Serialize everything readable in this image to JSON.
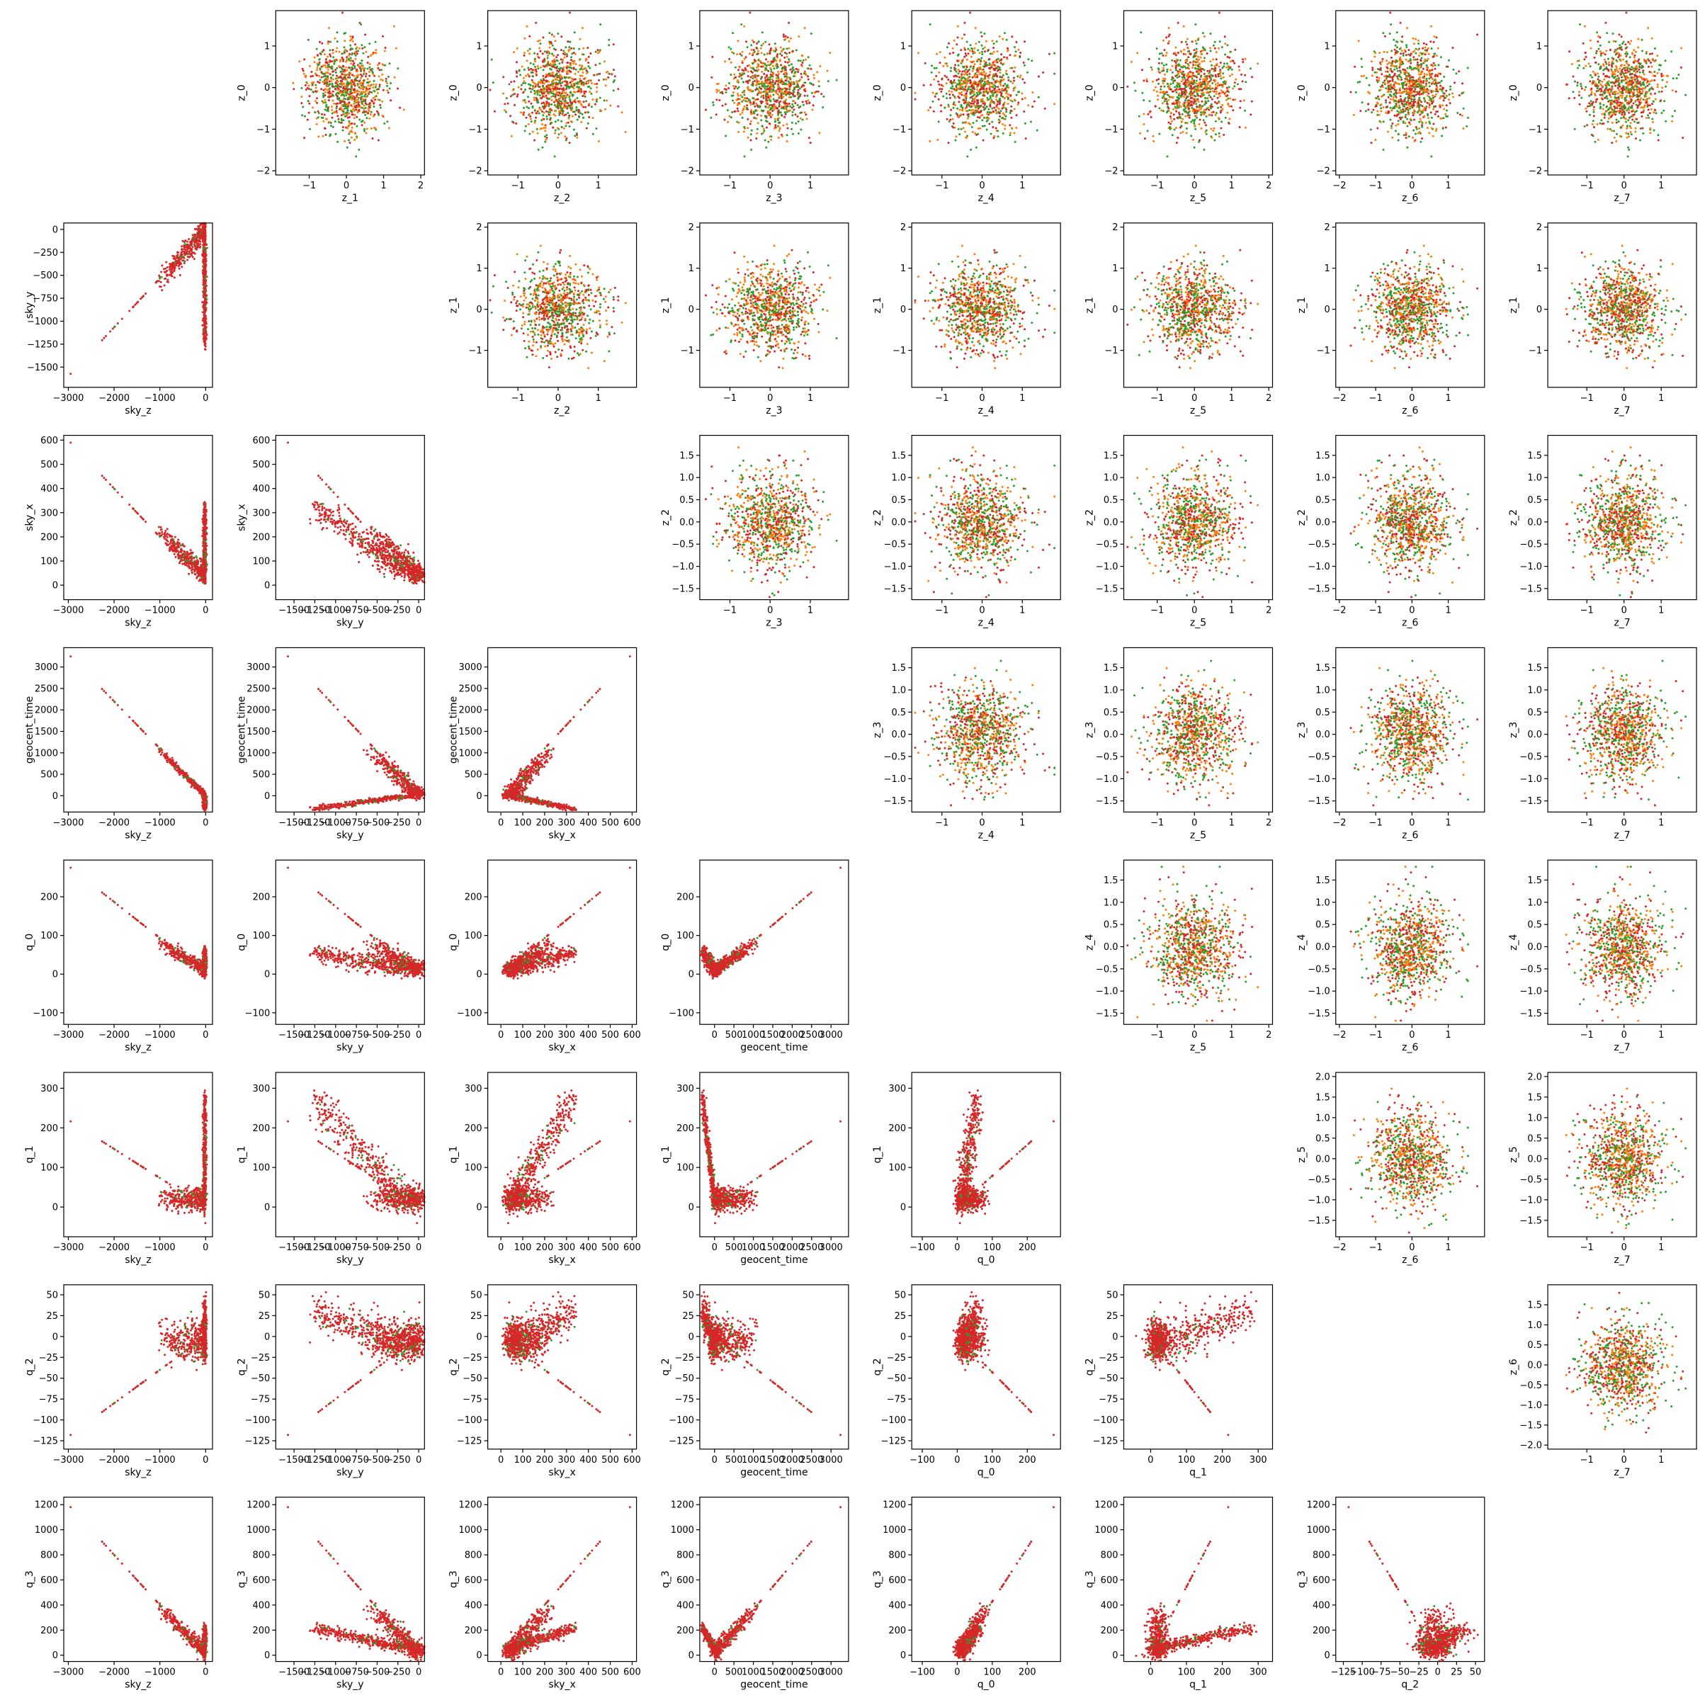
{
  "colors": {
    "green": "#2ca02c",
    "orange": "#ff7f0e",
    "red": "#d62728"
  },
  "chart_data": {
    "type": "scatter",
    "layout": "pair-plot-matrix",
    "grid": false,
    "params": [
      {
        "name": "sky_z",
        "range": [
          -3100,
          150
        ],
        "ticks": [
          -3000,
          -2000,
          -1000,
          0
        ]
      },
      {
        "name": "sky_y",
        "range": [
          -1720,
          70
        ],
        "ticks": [
          -1500,
          -1250,
          -1000,
          -750,
          -500,
          -250,
          0
        ]
      },
      {
        "name": "sky_x",
        "range": [
          -60,
          620
        ],
        "ticks": [
          0,
          100,
          200,
          300,
          400,
          500,
          600
        ]
      },
      {
        "name": "geocent_time",
        "range": [
          -380,
          3450
        ],
        "ticks": [
          0,
          500,
          1000,
          1500,
          2000,
          2500,
          3000
        ]
      },
      {
        "name": "q_0",
        "range": [
          -130,
          295
        ],
        "ticks": [
          -100,
          0,
          100,
          200
        ]
      },
      {
        "name": "q_1",
        "range": [
          -75,
          340
        ],
        "ticks": [
          0,
          100,
          200,
          300
        ]
      },
      {
        "name": "q_2",
        "range": [
          -135,
          62
        ],
        "ticks": [
          -125,
          -100,
          -75,
          -50,
          -25,
          0,
          25,
          50
        ]
      },
      {
        "name": "q_3",
        "range": [
          -50,
          1260
        ],
        "ticks": [
          0,
          200,
          400,
          600,
          800,
          1000,
          1200
        ]
      }
    ],
    "latents": [
      {
        "name": "z_0",
        "range": [
          -2.1,
          1.85
        ],
        "ticks": [
          -2,
          -1,
          0,
          1
        ]
      },
      {
        "name": "z_1",
        "range": [
          -1.9,
          2.1
        ],
        "ticks": [
          -1,
          0,
          1,
          2
        ]
      },
      {
        "name": "z_2",
        "range": [
          -1.75,
          1.95
        ],
        "ticks": [
          -1.5,
          -1.0,
          -0.5,
          0.0,
          0.5,
          1.0,
          1.5
        ]
      },
      {
        "name": "z_3",
        "range": [
          -1.75,
          1.95
        ],
        "ticks": [
          -1.5,
          -1.0,
          -0.5,
          0.0,
          0.5,
          1.0,
          1.5
        ]
      },
      {
        "name": "z_4",
        "range": [
          -1.75,
          1.95
        ],
        "ticks": [
          -1.5,
          -1.0,
          -0.5,
          0.0,
          0.5,
          1.0,
          1.5
        ]
      },
      {
        "name": "z_5",
        "range": [
          -1.9,
          2.1
        ],
        "ticks": [
          -1,
          0,
          1,
          2
        ]
      },
      {
        "name": "z_6",
        "range": [
          -2.1,
          2.0
        ],
        "ticks": [
          -2,
          -1,
          0,
          1
        ]
      },
      {
        "name": "z_7",
        "range": [
          -2.05,
          1.95
        ],
        "ticks": [
          -1,
          0,
          1
        ]
      }
    ],
    "latent_ticks_x": {
      "z_1": [
        -1,
        0,
        1,
        2
      ],
      "z_2": [
        -1,
        0,
        1
      ],
      "z_3": [
        -1,
        0,
        1
      ],
      "z_4": [
        -1,
        0,
        1
      ],
      "z_5": [
        -1,
        0,
        1,
        2
      ],
      "z_6": [
        -2,
        -1,
        0,
        1
      ],
      "z_7": [
        -1,
        0,
        1
      ]
    },
    "latent_ticks_y": {
      "z_0": [
        -2,
        -1,
        0,
        1
      ],
      "z_1": [
        -1,
        0,
        1,
        2
      ],
      "z_2": [
        -1.5,
        -1.0,
        -0.5,
        0.0,
        0.5,
        1.0,
        1.5
      ],
      "z_3": [
        -1.5,
        -1.0,
        -0.5,
        0.0,
        0.5,
        1.0,
        1.5
      ],
      "z_4": [
        -1.5,
        -1.0,
        -0.5,
        0.0,
        0.5,
        1.0,
        1.5
      ],
      "z_5": [
        -1.5,
        -1.0,
        -0.5,
        0.0,
        0.5,
        1.0,
        1.5,
        2.0
      ],
      "z_6": [
        -2.0,
        -1.5,
        -1.0,
        -0.5,
        0.0,
        0.5,
        1.0,
        1.5
      ]
    },
    "series": [
      {
        "color": "green"
      },
      {
        "color": "orange"
      },
      {
        "color": "red"
      }
    ],
    "upper_panels": "latent pairs z_r (y) vs z_c (x), standard-normal clouds",
    "lower_panels": "physical parameter pairs, row parameter (y) vs column parameter (x)"
  }
}
